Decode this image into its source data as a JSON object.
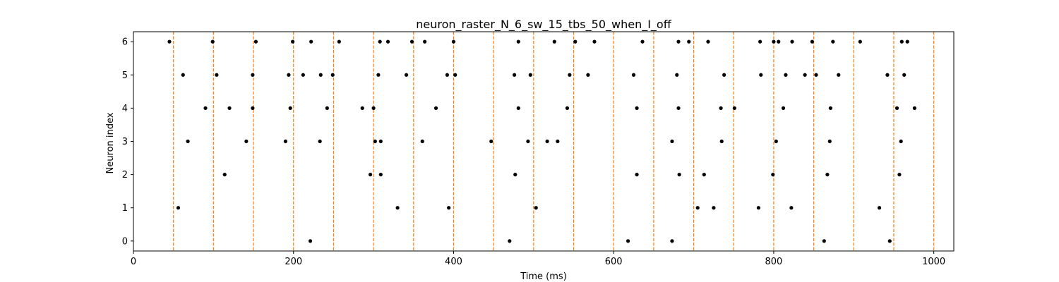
{
  "chart_data": {
    "type": "scatter",
    "title": "neuron_raster_N_6_sw_15_tbs_50_when_I_off",
    "xlabel": "Time (ms)",
    "ylabel": "Neuron index",
    "xlim": [
      0,
      1025
    ],
    "ylim": [
      -0.3,
      6.3
    ],
    "xticks": [
      0,
      200,
      400,
      600,
      800,
      1000
    ],
    "yticks": [
      0,
      1,
      2,
      3,
      4,
      5,
      6
    ],
    "grid": false,
    "legend": "none",
    "marker_color": "#000000",
    "vline_color": "#ff7f0e",
    "vlines_x": [
      50,
      100,
      150,
      200,
      250,
      300,
      350,
      400,
      450,
      500,
      550,
      600,
      650,
      700,
      750,
      800,
      850,
      900,
      950,
      1000
    ],
    "spikes": [
      {
        "neuron": 6,
        "times": [
          45,
          99,
          153,
          199,
          222,
          257,
          308,
          318,
          348,
          364,
          400,
          481,
          526,
          552,
          576,
          636,
          681,
          694,
          718,
          783,
          800,
          806,
          823,
          848,
          874,
          908,
          960,
          967
        ]
      },
      {
        "neuron": 5,
        "times": [
          62,
          104,
          149,
          194,
          212,
          234,
          249,
          306,
          341,
          392,
          402,
          476,
          496,
          545,
          568,
          625,
          679,
          738,
          784,
          815,
          839,
          853,
          881,
          942,
          963
        ]
      },
      {
        "neuron": 4,
        "times": [
          90,
          120,
          149,
          196,
          242,
          286,
          300,
          378,
          481,
          542,
          629,
          681,
          734,
          751,
          812,
          871,
          954,
          976
        ]
      },
      {
        "neuron": 3,
        "times": [
          68,
          141,
          190,
          233,
          302,
          309,
          361,
          447,
          493,
          517,
          530,
          673,
          735,
          803,
          870,
          959
        ]
      },
      {
        "neuron": 2,
        "times": [
          114,
          296,
          309,
          477,
          629,
          682,
          713,
          799,
          867,
          957
        ]
      },
      {
        "neuron": 1,
        "times": [
          56,
          330,
          394,
          503,
          705,
          725,
          781,
          822,
          932
        ]
      },
      {
        "neuron": 0,
        "times": [
          221,
          470,
          618,
          673,
          863,
          945
        ]
      }
    ]
  }
}
